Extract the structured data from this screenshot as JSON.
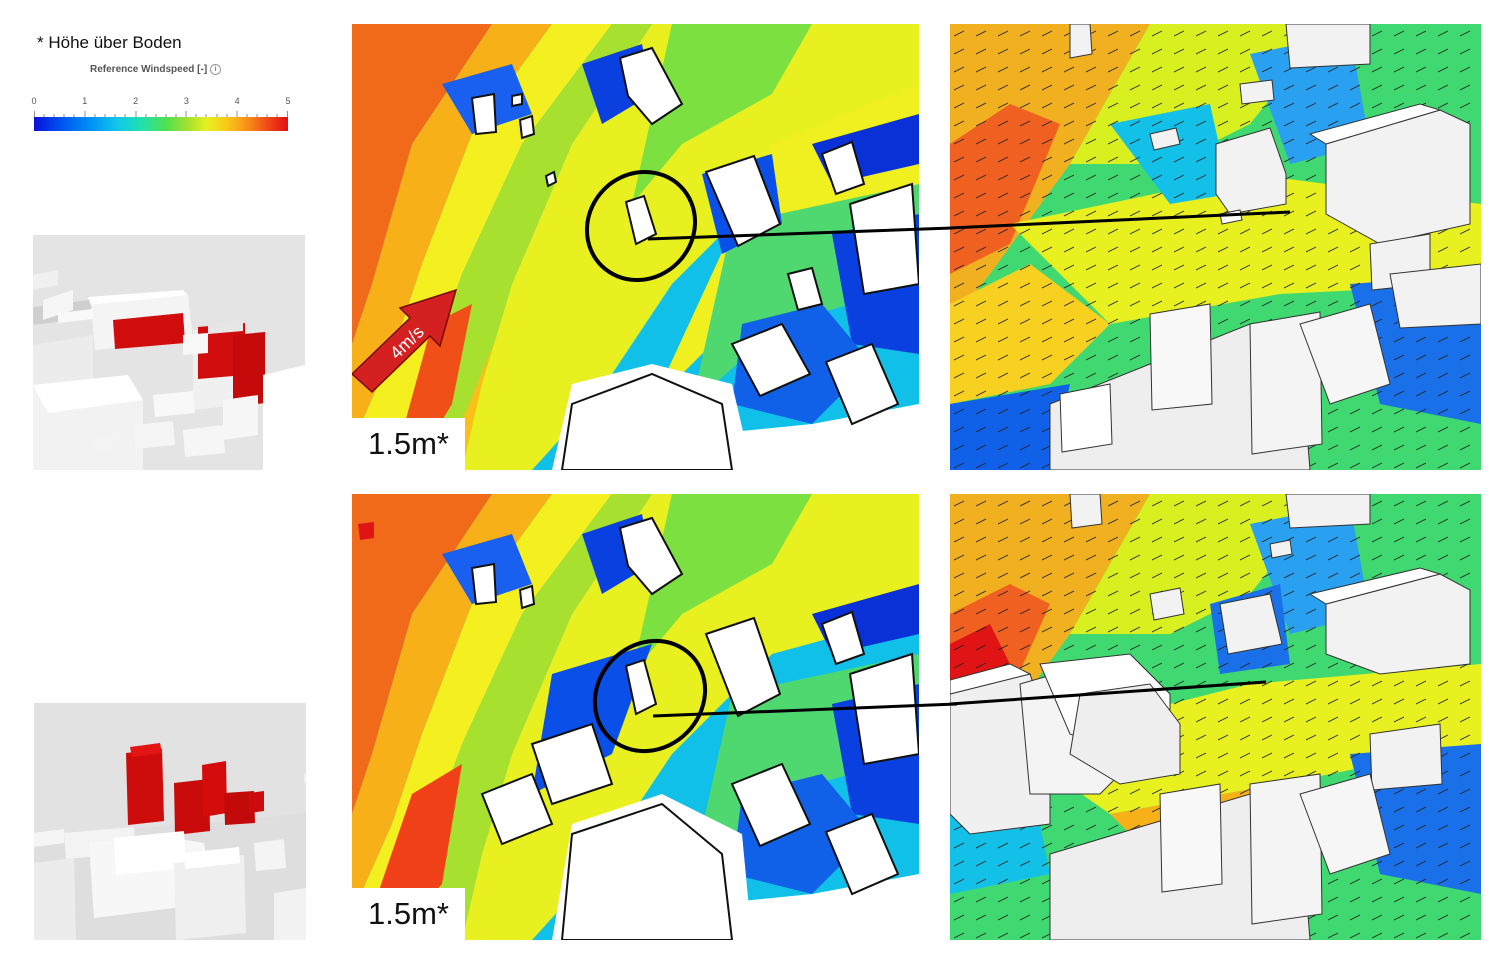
{
  "legend": {
    "height_note": "* Höhe über Boden",
    "title": "Reference Windspeed [-]",
    "info_icon": "info-icon",
    "ticks": [
      "0",
      "1",
      "2",
      "3",
      "4",
      "5"
    ],
    "colors": [
      "#0a10d8",
      "#0090f5",
      "#20e0b0",
      "#a0e030",
      "#f8c818",
      "#f04818",
      "#e01010"
    ]
  },
  "top_row": {
    "height_label": "1.5m*",
    "wind_arrow_label": "4m/s"
  },
  "bottom_row": {
    "height_label": "1.5m*"
  },
  "highlight_color": "#d40c0c"
}
